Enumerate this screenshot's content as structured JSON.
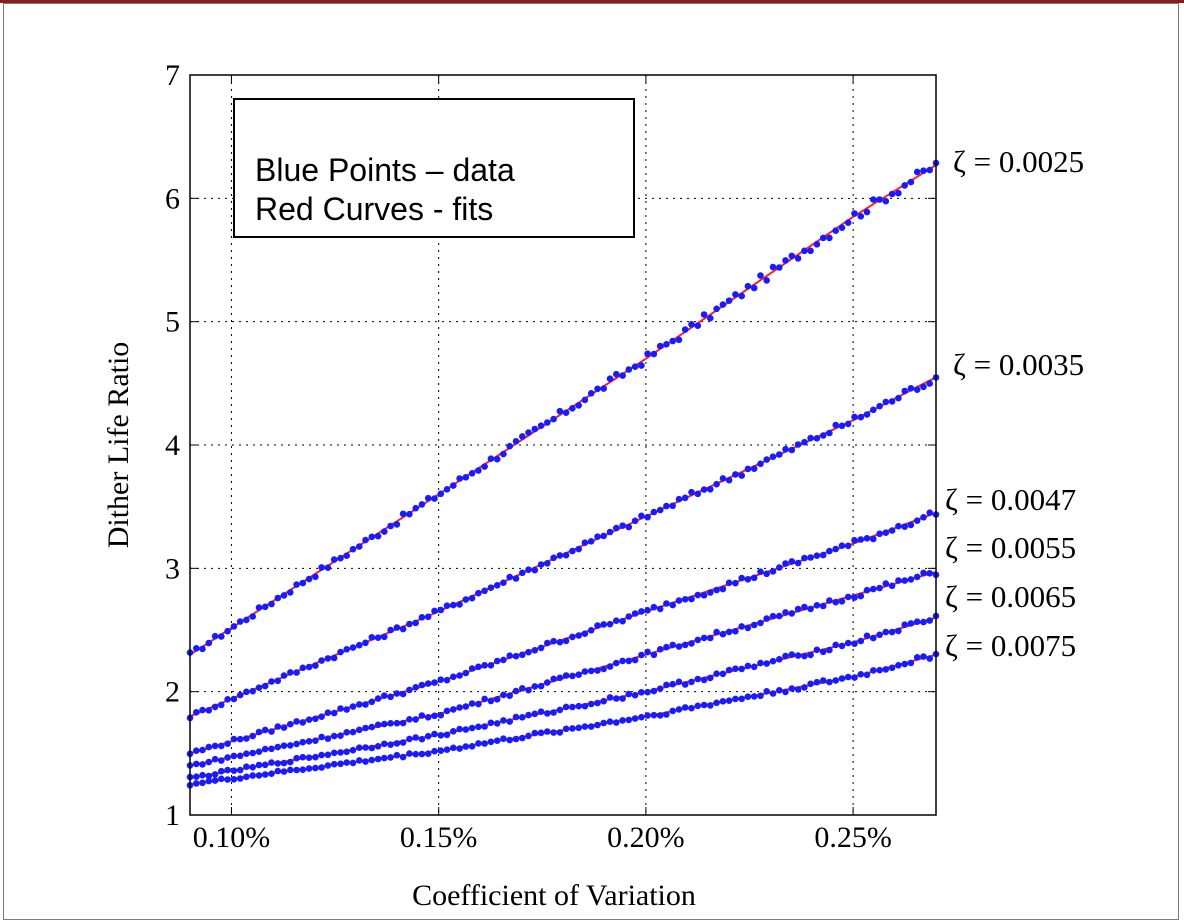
{
  "chart_data": {
    "type": "scatter",
    "xlabel": "Coefficient of Variation",
    "ylabel": "Dither Life Ratio",
    "xlim": [
      0.0009,
      0.0027
    ],
    "ylim": [
      1,
      7
    ],
    "x_ticks": [
      {
        "value": 0.001,
        "label": "0.10%"
      },
      {
        "value": 0.0015,
        "label": "0.15%"
      },
      {
        "value": 0.002,
        "label": "0.20%"
      },
      {
        "value": 0.0025,
        "label": "0.25%"
      }
    ],
    "y_ticks": [
      {
        "value": 1,
        "label": "1"
      },
      {
        "value": 2,
        "label": "2"
      },
      {
        "value": 3,
        "label": "3"
      },
      {
        "value": 4,
        "label": "4"
      },
      {
        "value": 5,
        "label": "5"
      },
      {
        "value": 6,
        "label": "6"
      },
      {
        "value": 7,
        "label": "7"
      }
    ],
    "grid": true,
    "legend": {
      "placement": "top-left",
      "lines": [
        "Blue Points – data",
        "Red Curves - fits"
      ]
    },
    "colors": {
      "points": "#1a1aff",
      "fits": "#ff2020",
      "grid": "#000000"
    },
    "series": [
      {
        "name": "ζ = 0.0025",
        "x": [
          0.0009,
          0.0015,
          0.002,
          0.0025,
          0.0027
        ],
        "y": [
          2.3,
          3.6,
          4.7,
          5.85,
          6.27
        ]
      },
      {
        "name": "ζ = 0.0035",
        "x": [
          0.0009,
          0.0015,
          0.002,
          0.0025,
          0.0027
        ],
        "y": [
          1.8,
          2.65,
          3.42,
          4.2,
          4.55
        ]
      },
      {
        "name": "ζ = 0.0047",
        "x": [
          0.0009,
          0.0015,
          0.002,
          0.0025,
          0.0027
        ],
        "y": [
          1.5,
          2.08,
          2.65,
          3.2,
          3.45
        ]
      },
      {
        "name": "ζ = 0.0055",
        "x": [
          0.0009,
          0.0015,
          0.002,
          0.0025,
          0.0027
        ],
        "y": [
          1.4,
          1.82,
          2.3,
          2.78,
          2.97
        ]
      },
      {
        "name": "ζ = 0.0065",
        "x": [
          0.0009,
          0.0015,
          0.002,
          0.0025,
          0.0027
        ],
        "y": [
          1.3,
          1.65,
          2.0,
          2.4,
          2.6
        ]
      },
      {
        "name": "ζ = 0.0075",
        "x": [
          0.0009,
          0.0015,
          0.002,
          0.0025,
          0.0027
        ],
        "y": [
          1.25,
          1.52,
          1.8,
          2.12,
          2.3
        ]
      }
    ],
    "series_labels": [
      "ζ = 0.0025",
      "ζ = 0.0035",
      "ζ = 0.0047",
      "ζ = 0.0055",
      "ζ = 0.0065",
      "ζ = 0.0075"
    ]
  }
}
